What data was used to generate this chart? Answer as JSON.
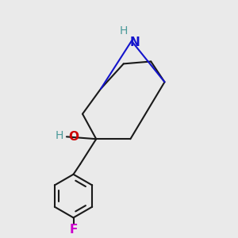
{
  "bg_color": "#eaeaea",
  "bond_color": "#1a1a1a",
  "N_color": "#1414cc",
  "O_color": "#cc0000",
  "H_color": "#4a9a9a",
  "F_color": "#cc00cc",
  "line_width": 1.5,
  "figsize": [
    3.0,
    3.0
  ],
  "dpi": 100,
  "xlim": [
    0,
    10
  ],
  "ylim": [
    0,
    10
  ]
}
